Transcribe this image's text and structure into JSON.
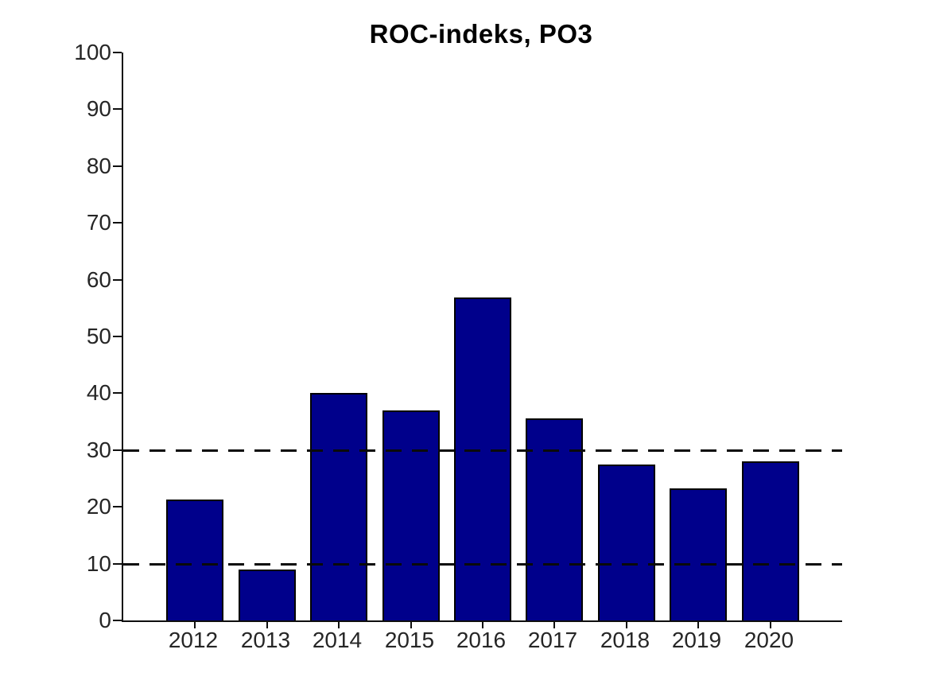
{
  "chart_data": {
    "type": "bar",
    "title": "ROC-indeks, PO3",
    "categories": [
      "2012",
      "2013",
      "2014",
      "2015",
      "2016",
      "2017",
      "2018",
      "2019",
      "2020"
    ],
    "values": [
      21.3,
      9.0,
      40.0,
      37.0,
      56.8,
      35.6,
      27.5,
      23.2,
      28.0
    ],
    "xlabel": "",
    "ylabel": "",
    "ylim": [
      0,
      100
    ],
    "yticks": [
      0,
      10,
      20,
      30,
      40,
      50,
      60,
      70,
      80,
      90,
      100
    ],
    "reference_lines": [
      {
        "y": 10,
        "style": "dashed",
        "color": "#0a0a0a"
      },
      {
        "y": 30,
        "style": "dashed",
        "color": "#0a0a0a"
      }
    ],
    "grid": false,
    "legend": null,
    "colors": {
      "bar_fill": "#00008B",
      "bar_edge": "#000000",
      "axis": "#0f0f0f",
      "tick_label": "#262626",
      "title": "#000000",
      "background": "#ffffff"
    }
  }
}
